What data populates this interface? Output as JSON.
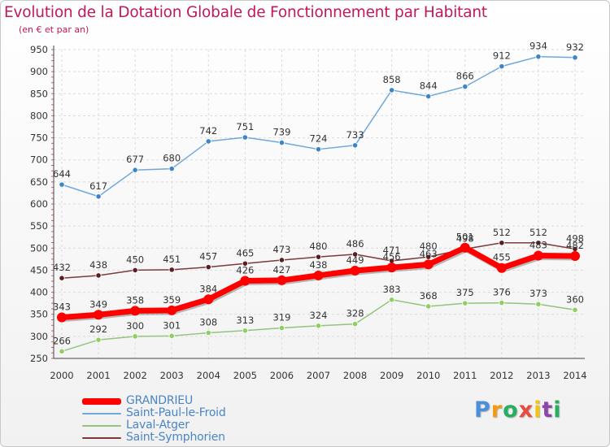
{
  "chart_data": {
    "type": "line",
    "title": "Evolution de la Dotation Globale de Fonctionnement par Habitant",
    "subtitle": "(en € et par an)",
    "xlabel": "",
    "ylabel": "",
    "x": [
      "2000",
      "2001",
      "2002",
      "2003",
      "2004",
      "2005",
      "2006",
      "2007",
      "2008",
      "2009",
      "2010",
      "2011",
      "2012",
      "2013",
      "2014"
    ],
    "ylim": [
      250,
      950
    ],
    "yticks": [
      "250",
      "300",
      "350",
      "400",
      "450",
      "500",
      "550",
      "600",
      "650",
      "700",
      "750",
      "800",
      "850",
      "900",
      "950"
    ],
    "grid": true,
    "series": [
      {
        "name": "GRANDRIEU",
        "color": "#ff0000",
        "values": [
          343,
          349,
          358,
          359,
          384,
          426,
          427,
          438,
          449,
          456,
          463,
          501,
          455,
          483,
          482
        ]
      },
      {
        "name": "Saint-Paul-le-Froid",
        "color": "#6fa8dc",
        "values": [
          644,
          617,
          677,
          680,
          742,
          751,
          739,
          724,
          733,
          858,
          844,
          866,
          912,
          934,
          932
        ]
      },
      {
        "name": "Laval-Atger",
        "color": "#93c47d",
        "values": [
          266,
          292,
          300,
          301,
          308,
          313,
          319,
          324,
          328,
          383,
          368,
          375,
          376,
          373,
          360
        ]
      },
      {
        "name": "Saint-Symphorien",
        "color": "#7b3b3b",
        "values": [
          432,
          438,
          450,
          451,
          457,
          465,
          473,
          480,
          486,
          471,
          480,
          498,
          512,
          512,
          498
        ]
      }
    ]
  },
  "logo": {
    "letters": [
      "P",
      "r",
      "o",
      "x",
      "i",
      "t",
      "i"
    ],
    "colors": [
      "#4a90d9",
      "#f39c12",
      "#27ae60",
      "#e74c3c",
      "#f1c40f",
      "#8e44ad",
      "#27ae60"
    ]
  }
}
